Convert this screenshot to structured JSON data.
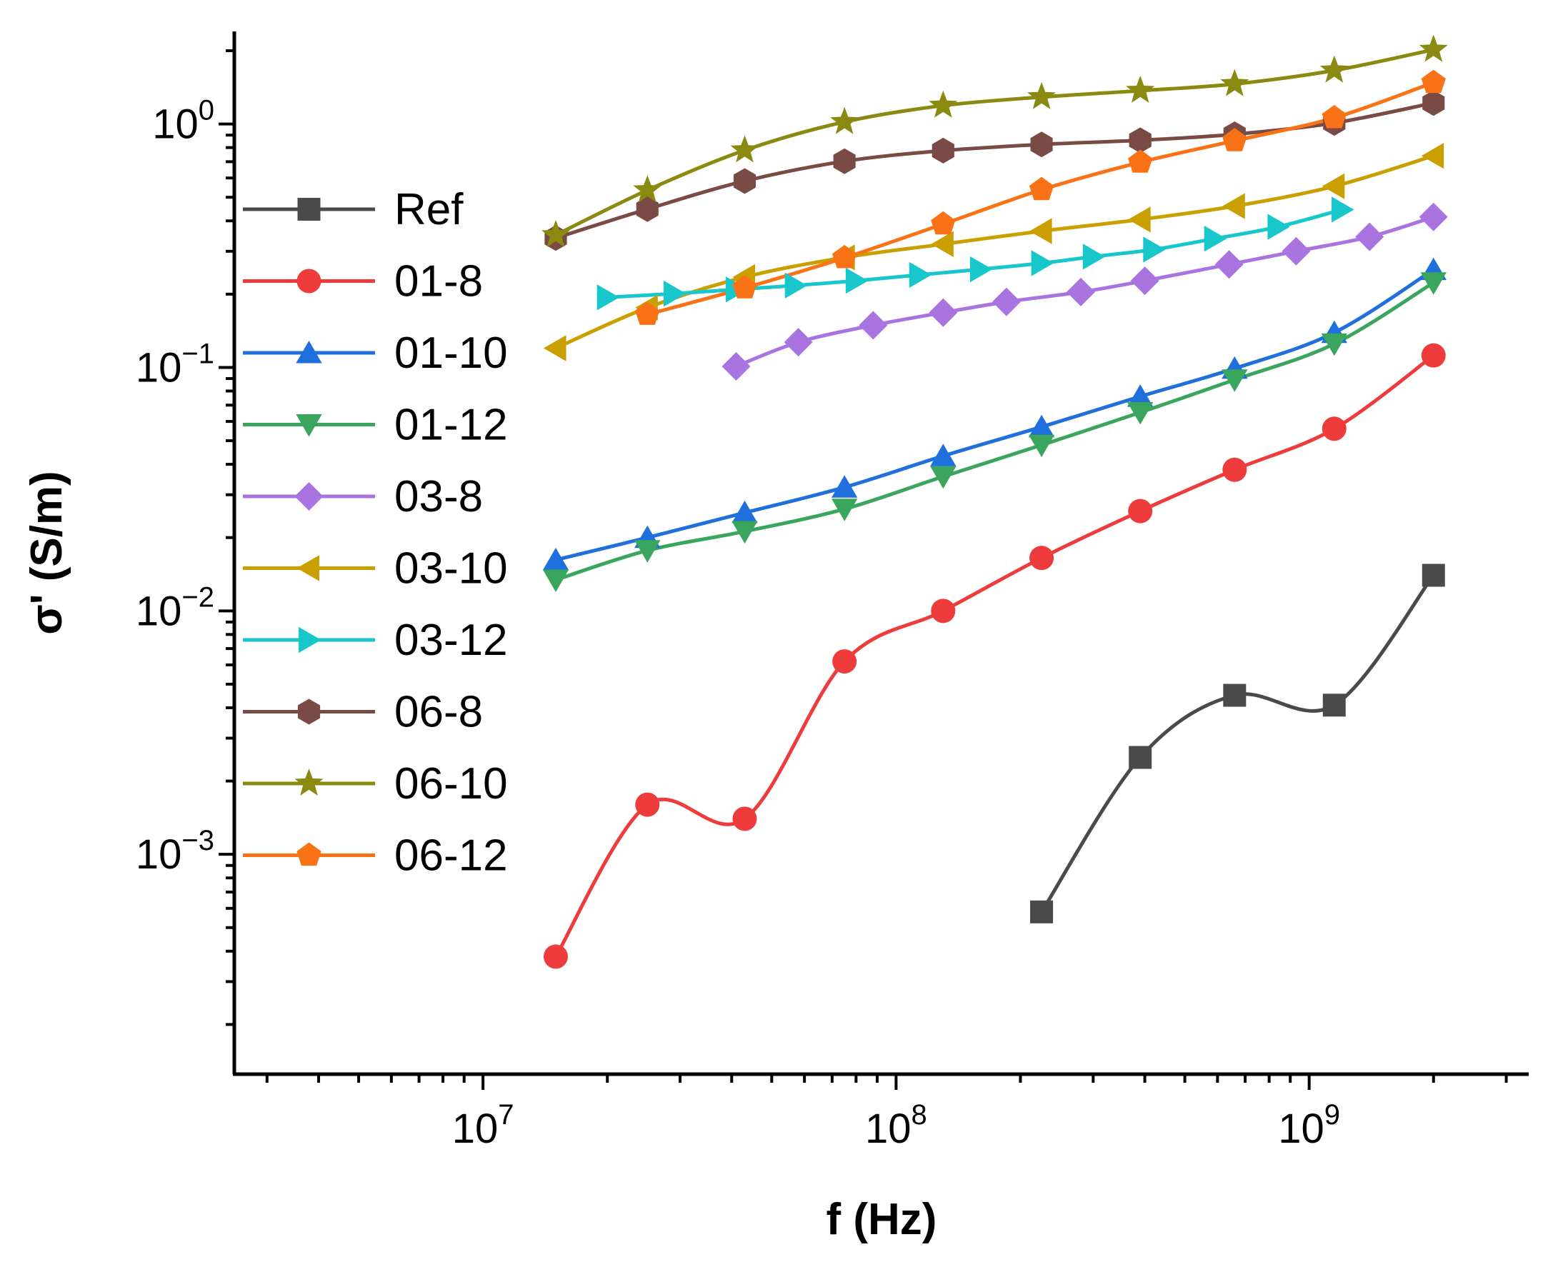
{
  "chart_data": {
    "type": "line",
    "title": "",
    "xlabel": "f (Hz)",
    "ylabel": "σ' (S/m)",
    "xscale": "log",
    "yscale": "log",
    "xlim": [
      2500000.0,
      3400000000.0
    ],
    "ylim": [
      0.000125,
      2.4
    ],
    "grid": false,
    "legend_position": "left",
    "x_ticks": [
      {
        "value": 10000000.0,
        "base": "10",
        "exp": "7"
      },
      {
        "value": 100000000.0,
        "base": "10",
        "exp": "8"
      },
      {
        "value": 1000000000.0,
        "base": "10",
        "exp": "9"
      }
    ],
    "y_ticks": [
      {
        "value": 0.001,
        "base": "10",
        "exp": "−3"
      },
      {
        "value": 0.01,
        "base": "10",
        "exp": "−2"
      },
      {
        "value": 0.1,
        "base": "10",
        "exp": "−1"
      },
      {
        "value": 1,
        "base": "10",
        "exp": "0"
      }
    ],
    "series": [
      {
        "name": "Ref",
        "color": "#4a4a4a",
        "marker": "square",
        "x": [
          225000000.0,
          390000000.0,
          660000000.0,
          1150000000.0,
          2000000000.0
        ],
        "y": [
          0.00058,
          0.0025,
          0.0045,
          0.0041,
          0.014
        ]
      },
      {
        "name": "01-8",
        "color": "#ee3b3b",
        "marker": "circle",
        "x": [
          15000000.0,
          25000000.0,
          43000000.0,
          75000000.0,
          130000000.0,
          225000000.0,
          390000000.0,
          660000000.0,
          1150000000.0,
          2000000000.0
        ],
        "y": [
          0.00038,
          0.0016,
          0.0014,
          0.0062,
          0.01,
          0.0165,
          0.0257,
          0.038,
          0.056,
          0.112
        ]
      },
      {
        "name": "01-10",
        "color": "#1f6fdc",
        "marker": "triangle-up",
        "x": [
          15000000.0,
          25000000.0,
          43000000.0,
          75000000.0,
          130000000.0,
          225000000.0,
          390000000.0,
          660000000.0,
          1150000000.0,
          2000000000.0
        ],
        "y": [
          0.0162,
          0.02,
          0.0253,
          0.0322,
          0.0433,
          0.057,
          0.076,
          0.099,
          0.139,
          0.252
        ]
      },
      {
        "name": "01-12",
        "color": "#3aa55c",
        "marker": "triangle-down",
        "x": [
          15000000.0,
          25000000.0,
          43000000.0,
          75000000.0,
          130000000.0,
          225000000.0,
          390000000.0,
          660000000.0,
          1150000000.0,
          2000000000.0
        ],
        "y": [
          0.0134,
          0.0177,
          0.0212,
          0.0262,
          0.0356,
          0.048,
          0.0653,
          0.089,
          0.125,
          0.223
        ]
      },
      {
        "name": "03-8",
        "color": "#a974e0",
        "marker": "diamond",
        "x": [
          41000000.0,
          58000000.0,
          88000000.0,
          130000000.0,
          185000000.0,
          280000000.0,
          400000000.0,
          640000000.0,
          930000000.0,
          1400000000.0,
          2000000000.0
        ],
        "y": [
          0.101,
          0.127,
          0.149,
          0.168,
          0.186,
          0.204,
          0.227,
          0.265,
          0.3,
          0.344,
          0.415
        ]
      },
      {
        "name": "03-10",
        "color": "#c9a000",
        "marker": "triangle-left",
        "x": [
          15000000.0,
          25000000.0,
          43000000.0,
          75000000.0,
          130000000.0,
          225000000.0,
          390000000.0,
          660000000.0,
          1150000000.0,
          2000000000.0
        ],
        "y": [
          0.12,
          0.176,
          0.235,
          0.283,
          0.321,
          0.363,
          0.405,
          0.46,
          0.555,
          0.74
        ]
      },
      {
        "name": "03-12",
        "color": "#18c7cc",
        "marker": "triangle-right",
        "x": [
          20000000.0,
          29000000.0,
          41000000.0,
          57000000.0,
          80000000.0,
          114000000.0,
          160000000.0,
          225000000.0,
          300000000.0,
          420000000.0,
          590000000.0,
          840000000.0,
          1200000000.0
        ],
        "y": [
          0.194,
          0.201,
          0.209,
          0.217,
          0.227,
          0.24,
          0.253,
          0.268,
          0.285,
          0.305,
          0.338,
          0.378,
          0.445
        ]
      },
      {
        "name": "06-8",
        "color": "#7a4a45",
        "marker": "hexagon",
        "x": [
          15000000.0,
          25000000.0,
          43000000.0,
          75000000.0,
          130000000.0,
          225000000.0,
          390000000.0,
          660000000.0,
          1150000000.0,
          2000000000.0
        ],
        "y": [
          0.34,
          0.447,
          0.583,
          0.703,
          0.777,
          0.824,
          0.857,
          0.907,
          1.01,
          1.22
        ]
      },
      {
        "name": "06-10",
        "color": "#8a8a10",
        "marker": "star",
        "x": [
          15000000.0,
          25000000.0,
          43000000.0,
          75000000.0,
          130000000.0,
          225000000.0,
          390000000.0,
          660000000.0,
          1150000000.0,
          2000000000.0
        ],
        "y": [
          0.35,
          0.535,
          0.78,
          1.02,
          1.19,
          1.29,
          1.37,
          1.46,
          1.66,
          2.02
        ]
      },
      {
        "name": "06-12",
        "color": "#f97316",
        "marker": "pentagon",
        "x": [
          25000000.0,
          43000000.0,
          75000000.0,
          130000000.0,
          225000000.0,
          390000000.0,
          660000000.0,
          1150000000.0,
          2000000000.0
        ],
        "y": [
          0.165,
          0.212,
          0.282,
          0.388,
          0.537,
          0.696,
          0.853,
          1.06,
          1.48
        ]
      }
    ]
  }
}
